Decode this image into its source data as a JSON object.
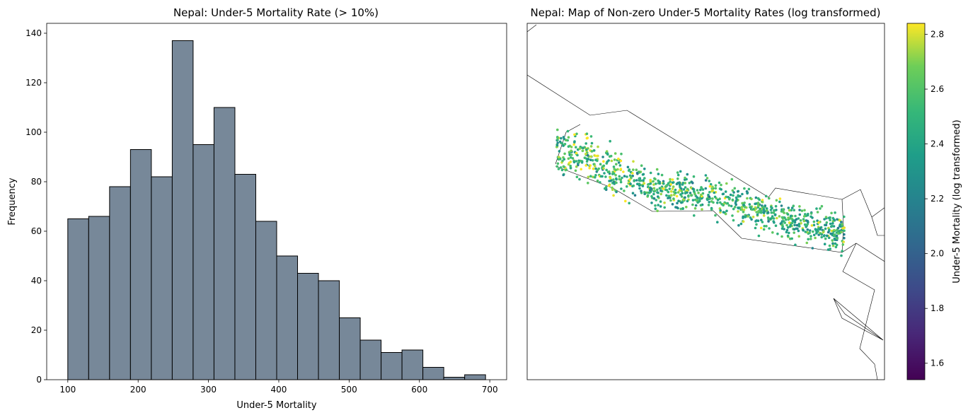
{
  "chart_data": [
    {
      "type": "bar",
      "title": "Nepal: Under-5 Mortality Rate (> 10%)",
      "xlabel": "Under-5 Mortality",
      "ylabel": "Frequency",
      "bin_edges": [
        100,
        129.7,
        159.4,
        189.1,
        218.8,
        248.5,
        278.2,
        307.9,
        337.6,
        367.3,
        397.0,
        426.7,
        456.4,
        486.1,
        515.8,
        545.5,
        575.2,
        604.9,
        634.6,
        664.3,
        694.0
      ],
      "values": [
        65,
        66,
        78,
        93,
        82,
        137,
        95,
        110,
        83,
        64,
        50,
        43,
        40,
        25,
        16,
        11,
        12,
        5,
        1,
        2
      ],
      "color": "#778899",
      "xlim": [
        70,
        724
      ],
      "ylim": [
        0,
        144
      ],
      "xticks": [
        100,
        200,
        300,
        400,
        500,
        600,
        700
      ],
      "yticks": [
        0,
        20,
        40,
        60,
        80,
        100,
        120,
        140
      ],
      "grid": false
    },
    {
      "type": "scatter",
      "title": "Nepal: Map of Non-zero Under-5 Mortality Rates (log transformed)",
      "colorbar_label": "Under-5 Mortality (log transformed)",
      "colormap": "viridis",
      "color_range": [
        1.54,
        2.84
      ],
      "colorbar_ticks": [
        1.6,
        1.8,
        2.0,
        2.2,
        2.4,
        2.6,
        2.8
      ],
      "point_count": 1000,
      "grid": false
    }
  ]
}
